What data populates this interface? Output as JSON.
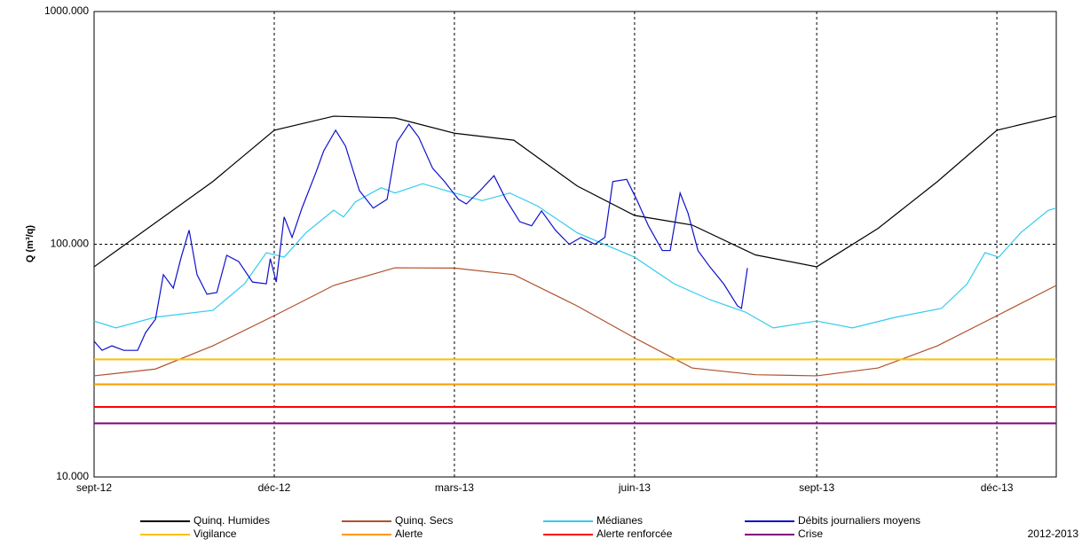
{
  "chart_data": {
    "type": "line",
    "y_label": "Q (m³/q)",
    "footer": "2012-2013",
    "log_scale": true,
    "grid": true,
    "xlim": [
      0,
      486
    ],
    "xticks": [
      {
        "value": 0,
        "label": "sept-12"
      },
      {
        "value": 91,
        "label": "déc-12"
      },
      {
        "value": 182,
        "label": "mars-13"
      },
      {
        "value": 273,
        "label": "juin-13"
      },
      {
        "value": 365,
        "label": "sept-13"
      },
      {
        "value": 456,
        "label": "déc-13"
      }
    ],
    "ylim": [
      10,
      1000
    ],
    "yticks": [
      {
        "value": 10,
        "label": "10.000"
      },
      {
        "value": 100,
        "label": "100.000"
      },
      {
        "value": 1000,
        "label": "1000.000"
      }
    ],
    "series": [
      {
        "name": "Quinq. Humides",
        "color": "#000000",
        "x": [
          0,
          60,
          91,
          121,
          152,
          182,
          212,
          244,
          273,
          302,
          334,
          365,
          396,
          426,
          456,
          486
        ],
        "values": [
          80,
          186,
          309,
          355,
          349,
          300,
          280,
          178,
          133,
          121,
          90,
          80,
          117,
          186,
          309,
          355
        ]
      },
      {
        "name": "Quinq. Secs",
        "color": "#b0522a",
        "x": [
          0,
          31,
          60,
          91,
          121,
          152,
          182,
          212,
          244,
          273,
          302,
          334,
          365,
          396,
          426,
          456,
          486
        ],
        "values": [
          27.2,
          29.1,
          36.6,
          49.3,
          66.5,
          79.2,
          79,
          74,
          54.3,
          39.6,
          29.4,
          27.5,
          27.2,
          29.4,
          36.6,
          49.3,
          66.5
        ]
      },
      {
        "name": "Médianes",
        "color": "#33ccee",
        "x": [
          0,
          11,
          31,
          60,
          76,
          87,
          96,
          107,
          121,
          126,
          132,
          145,
          152,
          166,
          182,
          196,
          210,
          224,
          244,
          273,
          293,
          311,
          329,
          343,
          365,
          383,
          405,
          428,
          441,
          450,
          457,
          468,
          482,
          486
        ],
        "values": [
          46.8,
          43.7,
          48.6,
          52,
          67.6,
          92,
          88,
          112,
          140,
          131,
          152,
          175,
          166,
          182,
          166,
          154,
          166,
          146,
          112,
          88,
          67.6,
          57.8,
          51.1,
          43.7,
          46.8,
          43.7,
          48.6,
          53,
          67.6,
          92,
          88,
          112,
          140,
          143
        ]
      },
      {
        "name": "Débits journaliers moyens",
        "color": "#1010cc",
        "x": [
          0,
          4,
          9,
          15,
          22,
          26,
          31,
          35,
          40,
          44,
          48,
          52,
          57,
          62,
          67,
          73,
          80,
          87,
          89,
          92,
          96,
          100,
          105,
          112,
          116,
          122,
          127,
          134,
          141,
          148,
          153,
          159,
          164,
          171,
          177,
          184,
          188,
          195,
          202,
          208,
          215,
          221,
          226,
          233,
          240,
          246,
          253,
          258,
          262,
          269,
          274,
          280,
          287,
          291,
          296,
          300,
          305,
          311,
          318,
          325,
          327,
          330
        ],
        "values": [
          38.3,
          35,
          36.6,
          35,
          35,
          41.7,
          47.6,
          74,
          64.8,
          88,
          115,
          74,
          61,
          62,
          89.6,
          84.3,
          68.8,
          67.6,
          86.7,
          68.8,
          131,
          107,
          143,
          203,
          252,
          309,
          264,
          170,
          143,
          156,
          275,
          328,
          288,
          212,
          186,
          156,
          149,
          170,
          197,
          156,
          125,
          120,
          139,
          115,
          100,
          107,
          100,
          107,
          186,
          190,
          156,
          120,
          94,
          94,
          166,
          136,
          94,
          80,
          67.6,
          54.3,
          53,
          79
        ]
      },
      {
        "name": "Vigilance",
        "color": "#ffc000",
        "x": [
          0,
          486
        ],
        "values": [
          32,
          32
        ]
      },
      {
        "name": "Alerte",
        "color": "#ff9900",
        "x": [
          0,
          486
        ],
        "values": [
          25,
          25
        ]
      },
      {
        "name": "Alerte renforcée",
        "color": "#ff0000",
        "x": [
          0,
          486
        ],
        "values": [
          20,
          20
        ]
      },
      {
        "name": "Crise",
        "color": "#800080",
        "x": [
          0,
          486
        ],
        "values": [
          17,
          17
        ]
      }
    ]
  }
}
